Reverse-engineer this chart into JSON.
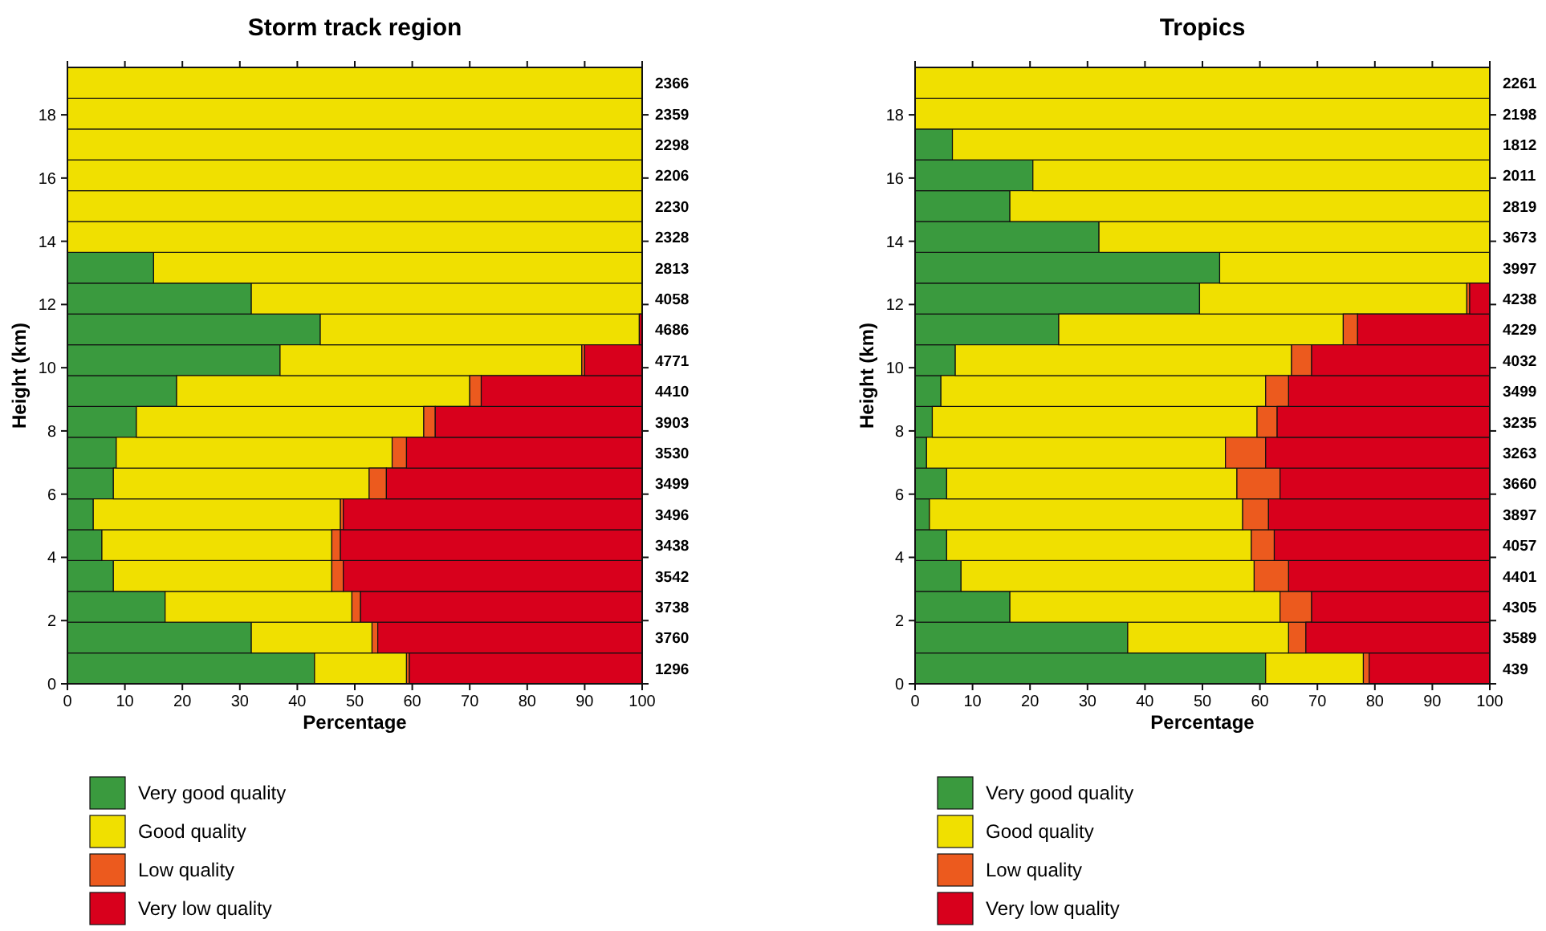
{
  "chart_data": [
    {
      "type": "bar",
      "title": "Storm track region",
      "xlabel": "Percentage",
      "ylabel": "Height (km)",
      "orientation": "horizontal",
      "stacked": true,
      "legend": "bottom left",
      "x": [
        0.49,
        1.46,
        2.44,
        3.41,
        4.39,
        5.36,
        6.34,
        7.31,
        8.29,
        9.26,
        10.24,
        11.21,
        12.19,
        13.16,
        14.14,
        15.11,
        16.09,
        17.06,
        18.04,
        19.01
      ],
      "series": [
        {
          "name": "Very good quality",
          "color": "#3a9a3e",
          "values": [
            43,
            32,
            17,
            8,
            6,
            4.5,
            8,
            8.5,
            12,
            19,
            37,
            44,
            32,
            15,
            0,
            0,
            0,
            0,
            0,
            0
          ]
        },
        {
          "name": "Good quality",
          "color": "#f0e000",
          "values": [
            16,
            21,
            32.5,
            38,
            40,
            43,
            44.5,
            48,
            50,
            51,
            52.5,
            55.5,
            68,
            85,
            100,
            100,
            100,
            100,
            100,
            100
          ]
        },
        {
          "name": "Low quality",
          "color": "#ec5a1e",
          "values": [
            0.5,
            1,
            1.5,
            2,
            1.5,
            0.5,
            3,
            2.5,
            2,
            2,
            0.5,
            0,
            0,
            0,
            0,
            0,
            0,
            0,
            0,
            0
          ]
        },
        {
          "name": "Very low quality",
          "color": "#d8001c",
          "values": [
            40.5,
            46,
            49,
            52,
            52.5,
            52,
            44.5,
            41,
            36,
            28,
            10,
            0.5,
            0,
            0,
            0,
            0,
            0,
            0,
            0,
            0
          ]
        }
      ],
      "xlim": [
        0,
        100
      ],
      "xticks": [
        0,
        10,
        20,
        30,
        40,
        50,
        60,
        70,
        80,
        90,
        100
      ],
      "ylim": [
        0,
        19.5
      ],
      "yticks": [
        0,
        2,
        4,
        6,
        8,
        10,
        12,
        14,
        16,
        18
      ],
      "annotations": [
        "1296",
        "3760",
        "3738",
        "3542",
        "3438",
        "3496",
        "3499",
        "3530",
        "3903",
        "4410",
        "4771",
        "4686",
        "4058",
        "2813",
        "2328",
        "2230",
        "2206",
        "2298",
        "2359",
        "2366"
      ]
    },
    {
      "type": "bar",
      "title": "Tropics",
      "xlabel": "Percentage",
      "ylabel": "Height (km)",
      "orientation": "horizontal",
      "stacked": true,
      "legend": "bottom left",
      "x": [
        0.49,
        1.46,
        2.44,
        3.41,
        4.39,
        5.36,
        6.34,
        7.31,
        8.29,
        9.26,
        10.24,
        11.21,
        12.19,
        13.16,
        14.14,
        15.11,
        16.09,
        17.06,
        18.04,
        19.01
      ],
      "series": [
        {
          "name": "Very good quality",
          "color": "#3a9a3e",
          "values": [
            61,
            37,
            16.5,
            8,
            5.5,
            2.5,
            5.5,
            2,
            3,
            4.5,
            7,
            25,
            49.5,
            53,
            32,
            16.5,
            20.5,
            6.5,
            0,
            0
          ]
        },
        {
          "name": "Good quality",
          "color": "#f0e000",
          "values": [
            17,
            28,
            47,
            51,
            53,
            54.5,
            50.5,
            52,
            56.5,
            56.5,
            58.5,
            49.5,
            46.5,
            47,
            68,
            83.5,
            79.5,
            93.5,
            100,
            100
          ]
        },
        {
          "name": "Low quality",
          "color": "#ec5a1e",
          "values": [
            1,
            3,
            5.5,
            6,
            4,
            4.5,
            7.5,
            7,
            3.5,
            4,
            3.5,
            2.5,
            0.5,
            0,
            0,
            0,
            0,
            0,
            0,
            0
          ]
        },
        {
          "name": "Very low quality",
          "color": "#d8001c",
          "values": [
            21,
            32,
            31,
            35,
            37.5,
            38.5,
            36.5,
            39,
            37,
            35,
            31,
            23,
            3.5,
            0,
            0,
            0,
            0,
            0,
            0,
            0
          ]
        }
      ],
      "xlim": [
        0,
        100
      ],
      "xticks": [
        0,
        10,
        20,
        30,
        40,
        50,
        60,
        70,
        80,
        90,
        100
      ],
      "ylim": [
        0,
        19.5
      ],
      "yticks": [
        0,
        2,
        4,
        6,
        8,
        10,
        12,
        14,
        16,
        18
      ],
      "annotations": [
        "439",
        "3589",
        "4305",
        "4401",
        "4057",
        "3897",
        "3660",
        "3263",
        "3235",
        "3499",
        "4032",
        "4229",
        "4238",
        "3997",
        "3673",
        "2819",
        "2011",
        "1812",
        "2198",
        "2261"
      ]
    }
  ]
}
